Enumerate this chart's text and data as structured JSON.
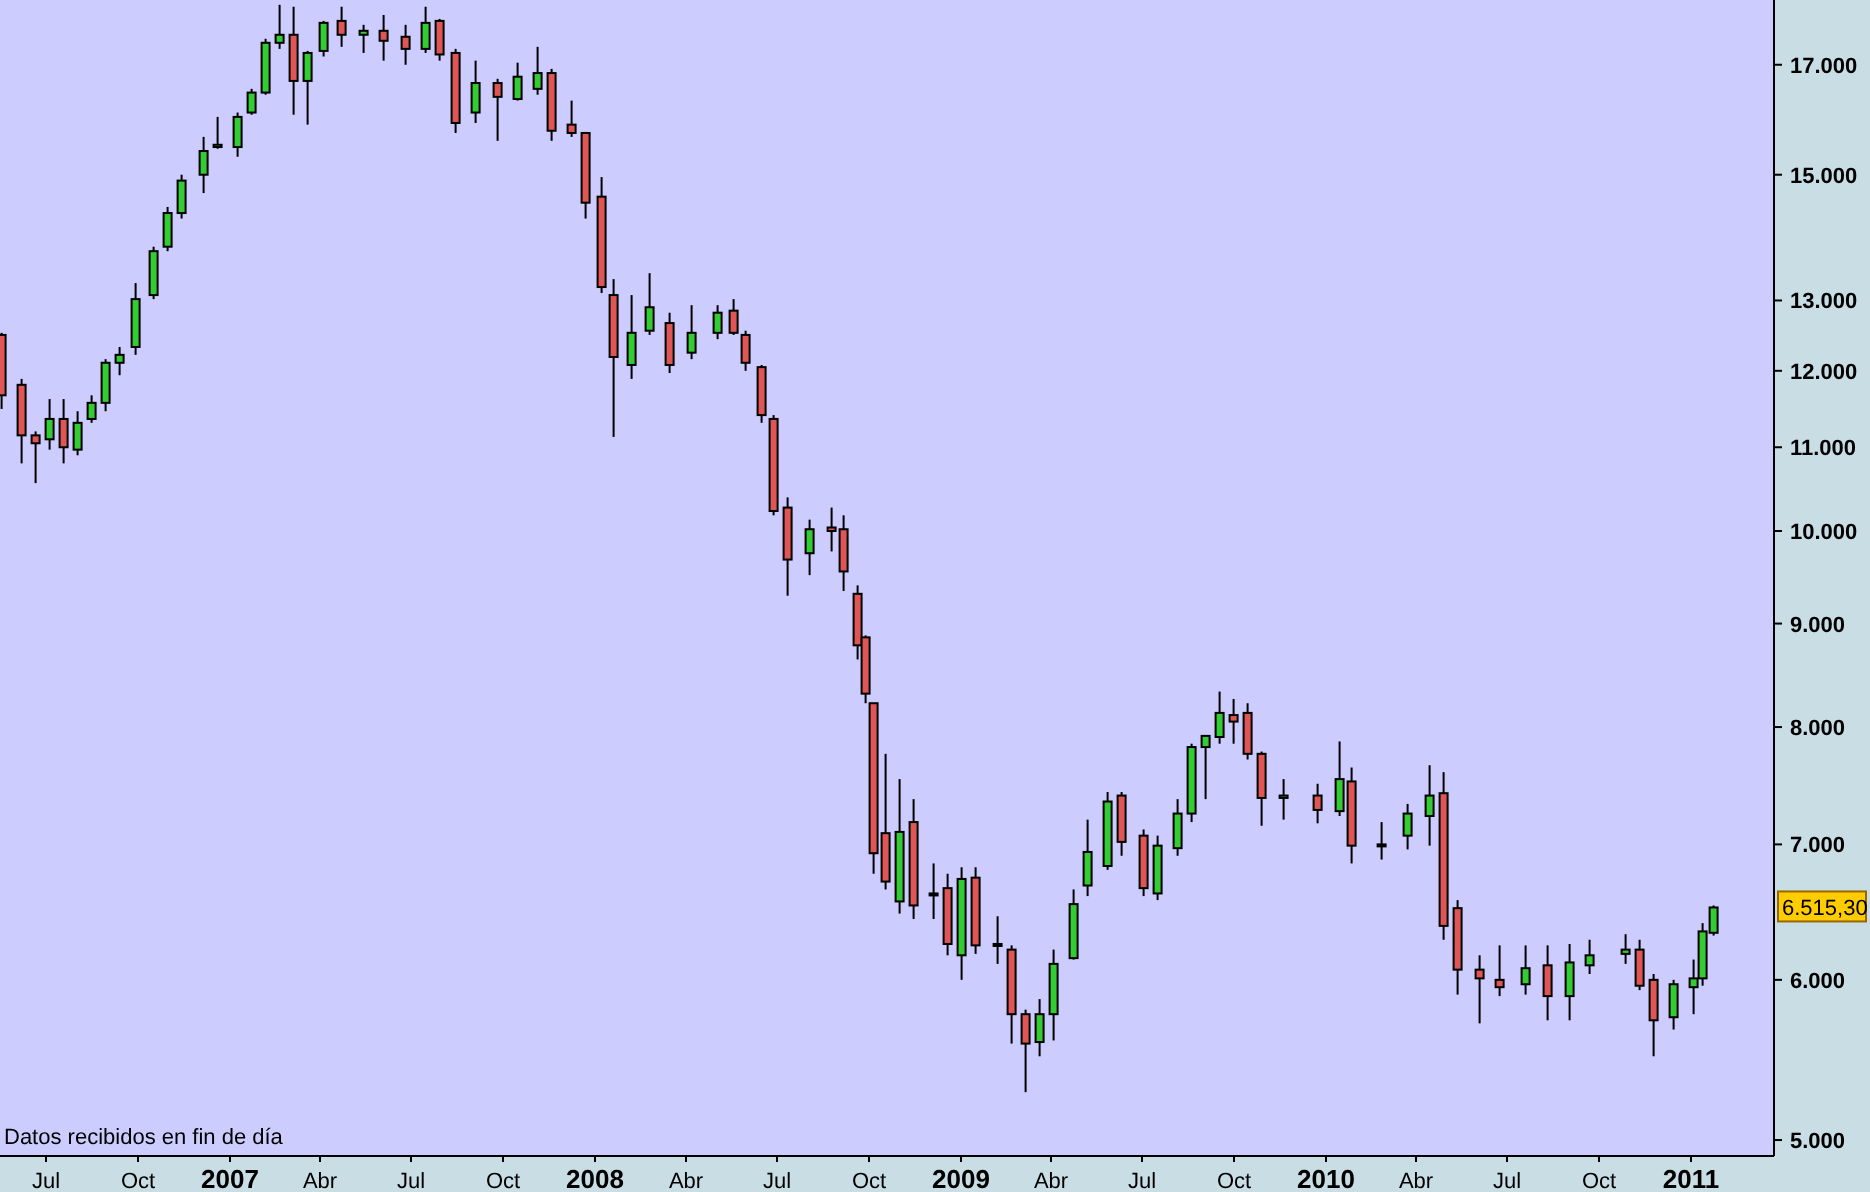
{
  "chart_data": {
    "type": "candlestick",
    "log": true,
    "annotations": [
      "Datos recibidos en fin de día",
      "6.515,30"
    ],
    "xlim": [
      "2006-05-16",
      "2011-03-25"
    ],
    "xticks": [
      {
        "value": "2006-07-01",
        "label": "Jul"
      },
      {
        "value": "2006-10-01",
        "label": "Oct"
      },
      {
        "value": "2007-01-01",
        "label": "2007"
      },
      {
        "value": "2007-04-01",
        "label": "Abr"
      },
      {
        "value": "2007-07-01",
        "label": "Jul"
      },
      {
        "value": "2007-10-01",
        "label": "Oct"
      },
      {
        "value": "2008-01-01",
        "label": "2008"
      },
      {
        "value": "2008-04-01",
        "label": "Abr"
      },
      {
        "value": "2008-07-01",
        "label": "Jul"
      },
      {
        "value": "2008-10-01",
        "label": "Oct"
      },
      {
        "value": "2009-01-01",
        "label": "2009"
      },
      {
        "value": "2009-04-01",
        "label": "Abr"
      },
      {
        "value": "2009-07-01",
        "label": "Jul"
      },
      {
        "value": "2009-10-01",
        "label": "Oct"
      },
      {
        "value": "2010-01-01",
        "label": "2010"
      },
      {
        "value": "2010-04-01",
        "label": "Abr"
      },
      {
        "value": "2010-07-01",
        "label": "Jul"
      },
      {
        "value": "2010-10-01",
        "label": "Oct"
      },
      {
        "value": "2011-01-01",
        "label": "2011"
      }
    ],
    "ylim": [
      4910,
      18300
    ],
    "yticks": [
      {
        "value": 5000,
        "label": "5.000"
      },
      {
        "value": 6000,
        "label": "6.000"
      },
      {
        "value": 7000,
        "label": "7.000"
      },
      {
        "value": 8000,
        "label": "8.000"
      },
      {
        "value": 9000,
        "label": "9.000"
      },
      {
        "value": 10000,
        "label": "10.000"
      },
      {
        "value": 11000,
        "label": "11.000"
      },
      {
        "value": 12000,
        "label": "12.000"
      },
      {
        "value": 13000,
        "label": "13.000"
      },
      {
        "value": 15000,
        "label": "15.000"
      },
      {
        "value": 17000,
        "label": "17.000"
      }
    ],
    "x": [
      "2006-05-18",
      "2006-06-07",
      "2006-06-21",
      "2006-07-05",
      "2006-07-19",
      "2006-08-02",
      "2006-08-16",
      "2006-08-30",
      "2006-09-13",
      "2006-09-29",
      "2006-10-17",
      "2006-10-31",
      "2006-11-14",
      "2006-12-06",
      "2006-12-20",
      "2007-01-09",
      "2007-01-23",
      "2007-02-06",
      "2007-02-20",
      "2007-03-06",
      "2007-03-20",
      "2007-04-05",
      "2007-04-23",
      "2007-05-15",
      "2007-06-04",
      "2007-06-26",
      "2007-07-16",
      "2007-07-30",
      "2007-08-15",
      "2007-09-04",
      "2007-09-26",
      "2007-10-16",
      "2007-11-05",
      "2007-11-19",
      "2007-12-09",
      "2007-12-23",
      "2008-01-08",
      "2008-01-20",
      "2008-02-07",
      "2008-02-25",
      "2008-03-16",
      "2008-04-07",
      "2008-05-03",
      "2008-05-19",
      "2008-05-31",
      "2008-06-16",
      "2008-06-28",
      "2008-07-12",
      "2008-08-03",
      "2008-08-25",
      "2008-09-06",
      "2008-09-20",
      "2008-09-28",
      "2008-10-06",
      "2008-10-18",
      "2008-11-01",
      "2008-11-15",
      "2008-12-05",
      "2008-12-19",
      "2009-01-02",
      "2009-01-16",
      "2009-02-07",
      "2009-02-21",
      "2009-03-07",
      "2009-03-21",
      "2009-04-04",
      "2009-04-24",
      "2009-05-08",
      "2009-05-28",
      "2009-06-11",
      "2009-07-03",
      "2009-07-17",
      "2009-08-06",
      "2009-08-20",
      "2009-09-03",
      "2009-09-17",
      "2009-10-01",
      "2009-10-15",
      "2009-10-29",
      "2009-11-20",
      "2009-12-24",
      "2010-01-15",
      "2010-01-27",
      "2010-02-26",
      "2010-03-24",
      "2010-04-15",
      "2010-04-29",
      "2010-05-13",
      "2010-06-04",
      "2010-06-24",
      "2010-07-20",
      "2010-08-11",
      "2010-09-02",
      "2010-09-22",
      "2010-10-28",
      "2010-11-11",
      "2010-11-25",
      "2010-12-15",
      "2011-01-04",
      "2011-01-13",
      "2011-01-24"
    ],
    "ohlc": [
      [
        12500,
        12530,
        11490,
        11670
      ],
      [
        11810,
        11890,
        10800,
        11150
      ],
      [
        11150,
        11200,
        10560,
        11050
      ],
      [
        11100,
        11620,
        10970,
        11360
      ],
      [
        11360,
        11620,
        10800,
        11000
      ],
      [
        10970,
        11460,
        10900,
        11310
      ],
      [
        11360,
        11670,
        11310,
        11570
      ],
      [
        11570,
        12160,
        11460,
        12110
      ],
      [
        12110,
        12330,
        11940,
        12220
      ],
      [
        12330,
        13260,
        12220,
        13020
      ],
      [
        13080,
        13820,
        13020,
        13750
      ],
      [
        13820,
        14460,
        13750,
        14360
      ],
      [
        14360,
        15000,
        14270,
        14900
      ],
      [
        15000,
        15660,
        14690,
        15410
      ],
      [
        15480,
        16020,
        15450,
        15520
      ],
      [
        15480,
        16100,
        15310,
        16020
      ],
      [
        16100,
        16540,
        16060,
        16470
      ],
      [
        16470,
        17510,
        16430,
        17430
      ],
      [
        17430,
        18200,
        17310,
        17590
      ],
      [
        17590,
        18160,
        16060,
        16690
      ],
      [
        16690,
        17270,
        15880,
        17230
      ],
      [
        17270,
        17870,
        17160,
        17830
      ],
      [
        17870,
        18160,
        17350,
        17590
      ],
      [
        17590,
        17790,
        17230,
        17670
      ],
      [
        17670,
        17990,
        17080,
        17470
      ],
      [
        17550,
        17790,
        17000,
        17310
      ],
      [
        17310,
        18160,
        17230,
        17830
      ],
      [
        17870,
        17910,
        17080,
        17200
      ],
      [
        17230,
        17310,
        15730,
        15910
      ],
      [
        16100,
        17080,
        15910,
        16650
      ],
      [
        16650,
        16730,
        15590,
        16390
      ],
      [
        16350,
        17040,
        16320,
        16770
      ],
      [
        16540,
        17350,
        16430,
        16840
      ],
      [
        16840,
        16920,
        15590,
        15770
      ],
      [
        15880,
        16320,
        15660,
        15730
      ],
      [
        15730,
        15730,
        14270,
        14530
      ],
      [
        14630,
        14960,
        13110,
        13200
      ],
      [
        13080,
        13320,
        11130,
        12190
      ],
      [
        12080,
        13080,
        11890,
        12530
      ],
      [
        12560,
        13410,
        12500,
        12900
      ],
      [
        12670,
        12820,
        11970,
        12080
      ],
      [
        12250,
        12930,
        12160,
        12530
      ],
      [
        12530,
        12930,
        12440,
        12820
      ],
      [
        12850,
        13020,
        12500,
        12530
      ],
      [
        12500,
        12560,
        12000,
        12110
      ],
      [
        12050,
        12080,
        11310,
        11410
      ],
      [
        11360,
        11410,
        10180,
        10230
      ],
      [
        10270,
        10390,
        9290,
        9680
      ],
      [
        9750,
        10130,
        9510,
        10020
      ],
      [
        10040,
        10270,
        9770,
        10000
      ],
      [
        10020,
        10180,
        9340,
        9550
      ],
      [
        9310,
        9400,
        8640,
        8780
      ],
      [
        8860,
        8880,
        8220,
        8310
      ],
      [
        8220,
        8220,
        6770,
        6930
      ],
      [
        7090,
        7760,
        6650,
        6710
      ],
      [
        6560,
        7540,
        6470,
        7100
      ],
      [
        7180,
        7370,
        6430,
        6530
      ],
      [
        6620,
        6850,
        6430,
        6620
      ],
      [
        6660,
        6770,
        6170,
        6250
      ],
      [
        6170,
        6820,
        6000,
        6730
      ],
      [
        6740,
        6820,
        6180,
        6240
      ],
      [
        6250,
        6450,
        6110,
        6240
      ],
      [
        6210,
        6240,
        5580,
        5770
      ],
      [
        5770,
        5800,
        5280,
        5580
      ],
      [
        5590,
        5870,
        5500,
        5770
      ],
      [
        5770,
        6210,
        5600,
        6110
      ],
      [
        6150,
        6650,
        6140,
        6540
      ],
      [
        6680,
        7200,
        6600,
        6940
      ],
      [
        6830,
        7430,
        6800,
        7350
      ],
      [
        7400,
        7430,
        6910,
        7020
      ],
      [
        7070,
        7120,
        6600,
        6660
      ],
      [
        6620,
        7070,
        6570,
        6990
      ],
      [
        6970,
        7370,
        6910,
        7250
      ],
      [
        7250,
        7850,
        7180,
        7820
      ],
      [
        7820,
        7920,
        7370,
        7920
      ],
      [
        7910,
        8330,
        7850,
        8130
      ],
      [
        8110,
        8260,
        7850,
        8050
      ],
      [
        8130,
        8220,
        7710,
        7760
      ],
      [
        7760,
        7780,
        7150,
        7380
      ],
      [
        7380,
        7540,
        7200,
        7400
      ],
      [
        7400,
        7500,
        7170,
        7280
      ],
      [
        7270,
        7870,
        7230,
        7540
      ],
      [
        7520,
        7640,
        6850,
        6990
      ],
      [
        6990,
        7180,
        6880,
        7000
      ],
      [
        7070,
        7330,
        6960,
        7250
      ],
      [
        7230,
        7660,
        6990,
        7400
      ],
      [
        7420,
        7600,
        6280,
        6380
      ],
      [
        6510,
        6570,
        5900,
        6070
      ],
      [
        6070,
        6170,
        5710,
        6010
      ],
      [
        6000,
        6240,
        5890,
        5950
      ],
      [
        5970,
        6240,
        5900,
        6080
      ],
      [
        6100,
        6240,
        5730,
        5890
      ],
      [
        5890,
        6250,
        5730,
        6120
      ],
      [
        6100,
        6280,
        6040,
        6170
      ],
      [
        6180,
        6320,
        6110,
        6210
      ],
      [
        6210,
        6280,
        5930,
        5960
      ],
      [
        6000,
        6040,
        5500,
        5730
      ],
      [
        5750,
        6000,
        5670,
        5970
      ],
      [
        5950,
        6140,
        5770,
        6010
      ],
      [
        6010,
        6400,
        5960,
        6340
      ],
      [
        6330,
        6530,
        6310,
        6515.3
      ]
    ]
  }
}
